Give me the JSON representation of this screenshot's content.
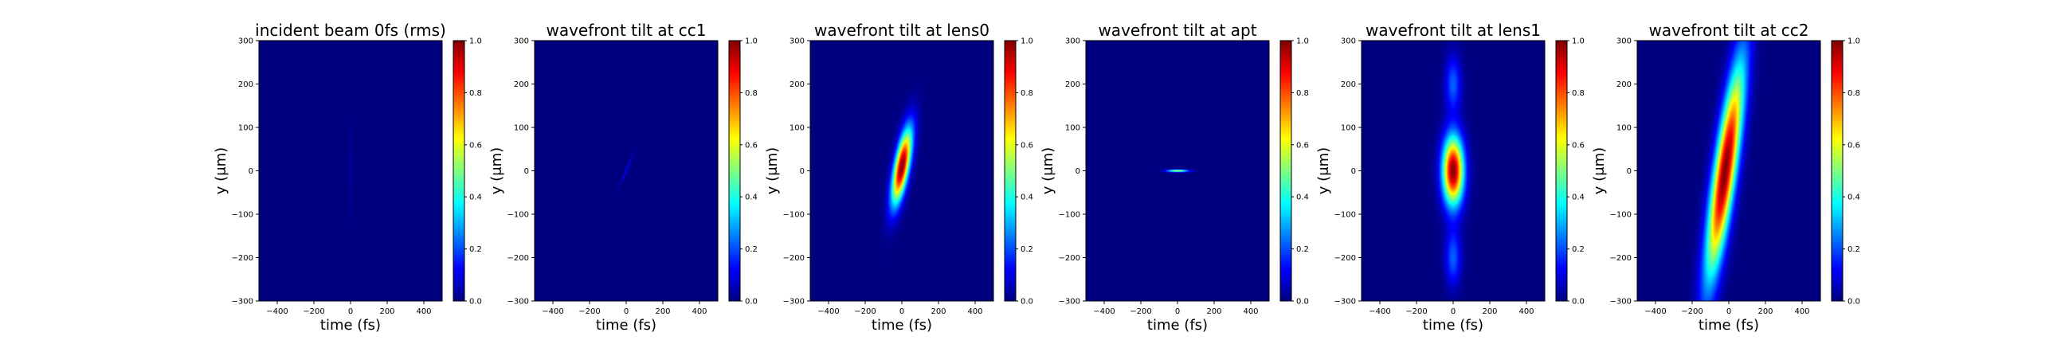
{
  "colormap_stops": [
    "#00007f",
    "#0000ff",
    "#007fff",
    "#00ffff",
    "#7fff7f",
    "#ffff00",
    "#ff7f00",
    "#ff0000",
    "#7f0000"
  ],
  "chart_data": [
    {
      "type": "heatmap",
      "title": "incident beam 0fs (rms)",
      "xlabel": "time (fs)",
      "ylabel": "y (μm)",
      "xlim": [
        -500,
        500
      ],
      "ylim": [
        -300,
        300
      ],
      "xticks": [
        -400,
        -200,
        0,
        200,
        400
      ],
      "yticks": [
        -300,
        -200,
        -100,
        0,
        100,
        200,
        300
      ],
      "colorbar": {
        "range": [
          0.0,
          1.0
        ],
        "ticks": [
          "0.0",
          "0.2",
          "0.4",
          "0.6",
          "0.8",
          "1.0"
        ]
      },
      "features": [
        {
          "center_t": 0,
          "center_y": 0,
          "sigma_t": 4,
          "sigma_y": 70,
          "tilt_fs_per_um": 0,
          "peak": 0.05
        }
      ]
    },
    {
      "type": "heatmap",
      "title": "wavefront tilt at cc1",
      "xlabel": "time (fs)",
      "ylabel": "y (μm)",
      "xlim": [
        -500,
        500
      ],
      "ylim": [
        -300,
        300
      ],
      "xticks": [
        -400,
        -200,
        0,
        200,
        400
      ],
      "yticks": [
        -300,
        -200,
        -100,
        0,
        100,
        200,
        300
      ],
      "colorbar": {
        "range": [
          0.0,
          1.0
        ],
        "ticks": [
          "0.0",
          "0.2",
          "0.4",
          "0.6",
          "0.8",
          "1.0"
        ]
      },
      "features": [
        {
          "center_t": 0,
          "center_y": 0,
          "sigma_t": 4,
          "sigma_y": 25,
          "tilt_fs_per_um": 1.0,
          "peak": 0.12
        }
      ]
    },
    {
      "type": "heatmap",
      "title": "wavefront tilt at lens0",
      "xlabel": "time (fs)",
      "ylabel": "y (μm)",
      "xlim": [
        -500,
        500
      ],
      "ylim": [
        -300,
        300
      ],
      "xticks": [
        -400,
        -200,
        0,
        200,
        400
      ],
      "yticks": [
        -300,
        -200,
        -100,
        0,
        100,
        200,
        300
      ],
      "colorbar": {
        "range": [
          0.0,
          1.0
        ],
        "ticks": [
          "0.0",
          "0.2",
          "0.4",
          "0.6",
          "0.8",
          "1.0"
        ]
      },
      "features": [
        {
          "center_t": 0,
          "center_y": 10,
          "sigma_t": 28,
          "sigma_y": 60,
          "tilt_fs_per_um": 0.42,
          "peak": 1.0
        }
      ]
    },
    {
      "type": "heatmap",
      "title": "wavefront tilt at apt",
      "xlabel": "time (fs)",
      "ylabel": "y (μm)",
      "xlim": [
        -500,
        500
      ],
      "ylim": [
        -300,
        300
      ],
      "xticks": [
        -400,
        -200,
        0,
        200,
        400
      ],
      "yticks": [
        -300,
        -200,
        -100,
        0,
        100,
        200,
        300
      ],
      "colorbar": {
        "range": [
          0.0,
          1.0
        ],
        "ticks": [
          "0.0",
          "0.2",
          "0.4",
          "0.6",
          "0.8",
          "1.0"
        ]
      },
      "features": [
        {
          "center_t": 0,
          "center_y": 0,
          "sigma_t": 40,
          "sigma_y": 2,
          "tilt_fs_per_um": 0,
          "peak": 0.6
        }
      ]
    },
    {
      "type": "heatmap",
      "title": "wavefront tilt at lens1",
      "xlabel": "time (fs)",
      "ylabel": "y (μm)",
      "xlim": [
        -500,
        500
      ],
      "ylim": [
        -300,
        300
      ],
      "xticks": [
        -400,
        -200,
        0,
        200,
        400
      ],
      "yticks": [
        -300,
        -200,
        -100,
        0,
        100,
        200,
        300
      ],
      "colorbar": {
        "range": [
          0.0,
          1.0
        ],
        "ticks": [
          "0.0",
          "0.2",
          "0.4",
          "0.6",
          "0.8",
          "1.0"
        ]
      },
      "features": [
        {
          "center_t": 0,
          "center_y": 0,
          "sigma_t": 40,
          "sigma_y": 55,
          "tilt_fs_per_um": 0,
          "peak": 1.0
        },
        {
          "center_t": 0,
          "center_y": 200,
          "sigma_t": 30,
          "sigma_y": 45,
          "tilt_fs_per_um": 0,
          "peak": 0.22
        },
        {
          "center_t": 0,
          "center_y": -200,
          "sigma_t": 30,
          "sigma_y": 45,
          "tilt_fs_per_um": 0,
          "peak": 0.22
        }
      ]
    },
    {
      "type": "heatmap",
      "title": "wavefront tilt at cc2",
      "xlabel": "time (fs)",
      "ylabel": "y (μm)",
      "xlim": [
        -500,
        500
      ],
      "ylim": [
        -300,
        300
      ],
      "xticks": [
        -400,
        -200,
        0,
        200,
        400
      ],
      "yticks": [
        -300,
        -200,
        -100,
        0,
        100,
        200,
        300
      ],
      "colorbar": {
        "range": [
          0.0,
          1.0
        ],
        "ticks": [
          "0.0",
          "0.2",
          "0.4",
          "0.6",
          "0.8",
          "1.0"
        ]
      },
      "features": [
        {
          "center_t": -20,
          "center_y": 0,
          "sigma_t": 42,
          "sigma_y": 170,
          "tilt_fs_per_um": 0.33,
          "peak": 1.0
        }
      ]
    }
  ]
}
